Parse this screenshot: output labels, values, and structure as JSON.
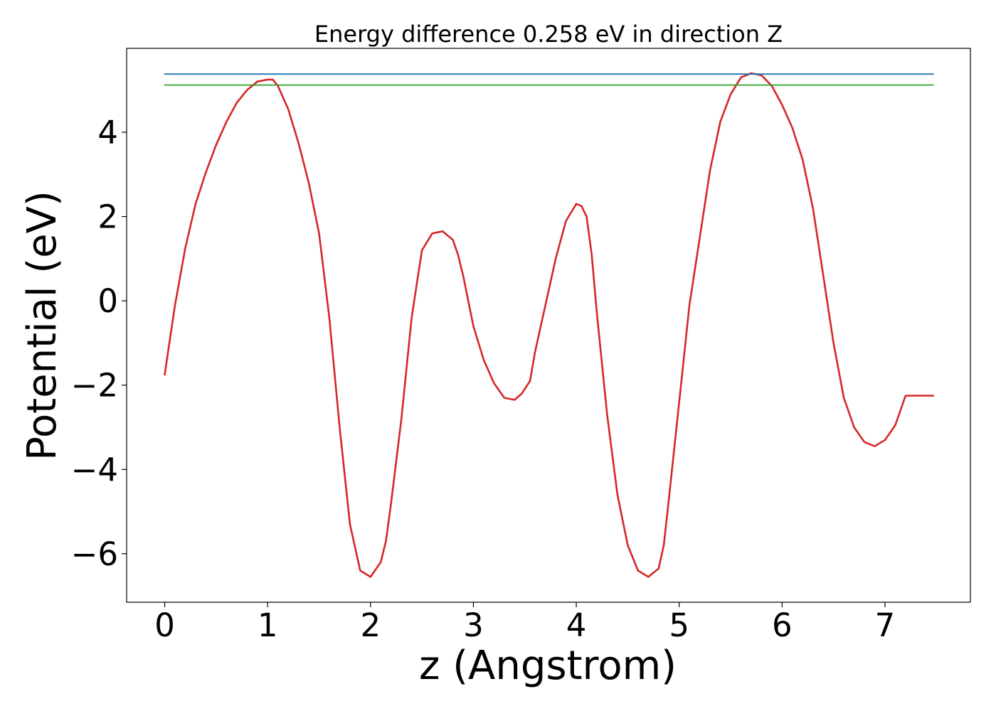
{
  "chart_data": {
    "type": "line",
    "title": "Energy difference 0.258 eV in direction Z",
    "xlabel": "z (Angstrom)",
    "ylabel": "Potential (eV)",
    "xlim": [
      -0.37,
      7.83
    ],
    "ylim": [
      -7.15,
      5.99
    ],
    "x_ticks": [
      0,
      1,
      2,
      3,
      4,
      5,
      6,
      7
    ],
    "x_tick_labels": [
      "0",
      "1",
      "2",
      "3",
      "4",
      "5",
      "6",
      "7"
    ],
    "y_ticks": [
      -6,
      -4,
      -2,
      0,
      2,
      4
    ],
    "y_tick_labels": [
      "−6",
      "−4",
      "−2",
      "0",
      "2",
      "4"
    ],
    "grid": false,
    "series": [
      {
        "color": "#d62728",
        "x": [
          0.0,
          0.1,
          0.2,
          0.3,
          0.4,
          0.5,
          0.6,
          0.7,
          0.8,
          0.9,
          1.0,
          1.05,
          1.1,
          1.2,
          1.3,
          1.4,
          1.5,
          1.6,
          1.7,
          1.8,
          1.9,
          2.0,
          2.1,
          2.15,
          2.2,
          2.3,
          2.4,
          2.5,
          2.6,
          2.7,
          2.8,
          2.85,
          2.9,
          2.95,
          3.0,
          3.1,
          3.2,
          3.3,
          3.4,
          3.47,
          3.55,
          3.6,
          3.7,
          3.8,
          3.9,
          4.0,
          4.05,
          4.1,
          4.15,
          4.2,
          4.3,
          4.4,
          4.5,
          4.6,
          4.7,
          4.8,
          4.85,
          4.9,
          5.0,
          5.1,
          5.2,
          5.3,
          5.4,
          5.5,
          5.6,
          5.7,
          5.8,
          5.9,
          6.0,
          6.1,
          6.2,
          6.3,
          6.4,
          6.5,
          6.6,
          6.7,
          6.8,
          6.9,
          7.0,
          7.1,
          7.2,
          7.3,
          7.4,
          7.47
        ],
        "y": [
          -1.75,
          -0.1,
          1.25,
          2.3,
          3.05,
          3.7,
          4.25,
          4.7,
          5.0,
          5.2,
          5.25,
          5.25,
          5.1,
          4.55,
          3.75,
          2.8,
          1.6,
          -0.4,
          -3.0,
          -5.3,
          -6.4,
          -6.55,
          -6.2,
          -5.7,
          -4.8,
          -2.8,
          -0.4,
          1.2,
          1.6,
          1.65,
          1.45,
          1.1,
          0.6,
          0.0,
          -0.6,
          -1.4,
          -1.95,
          -2.3,
          -2.35,
          -2.2,
          -1.9,
          -1.2,
          -0.1,
          1.0,
          1.9,
          2.3,
          2.25,
          2.0,
          1.1,
          -0.3,
          -2.7,
          -4.6,
          -5.8,
          -6.4,
          -6.55,
          -6.35,
          -5.8,
          -4.7,
          -2.4,
          -0.1,
          1.5,
          3.1,
          4.25,
          4.9,
          5.3,
          5.4,
          5.35,
          5.1,
          4.65,
          4.1,
          3.35,
          2.2,
          0.6,
          -1.0,
          -2.3,
          -3.0,
          -3.35,
          -3.45,
          -3.3,
          -2.95,
          -2.25,
          -2.25,
          -2.25,
          -2.25
        ]
      },
      {
        "color": "#1f77b4",
        "x": [
          0.0,
          7.47
        ],
        "y": [
          5.38,
          5.38
        ]
      },
      {
        "color": "#2ca02c",
        "x": [
          0.0,
          7.47
        ],
        "y": [
          5.12,
          5.12
        ]
      }
    ]
  }
}
